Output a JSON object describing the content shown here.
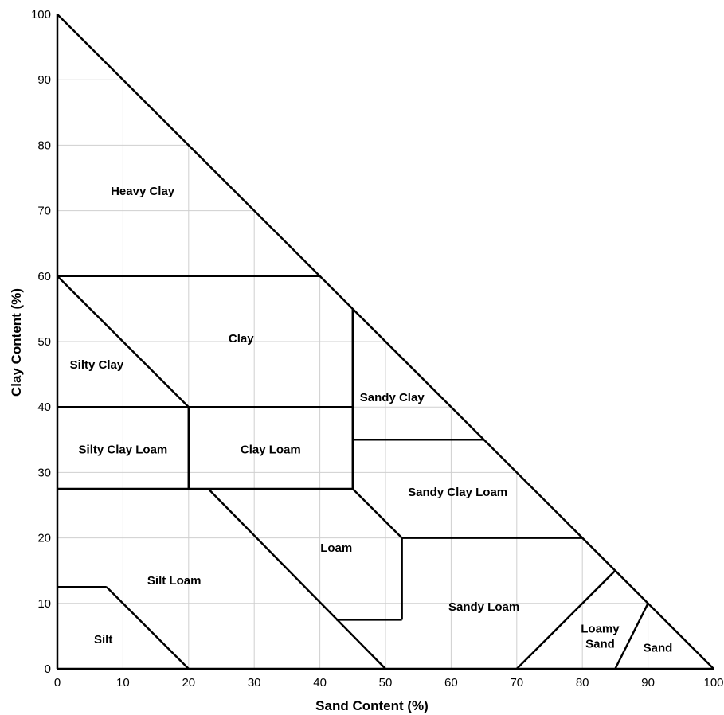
{
  "chart_data": {
    "type": "ternary-texture-diagram",
    "xlabel": "Sand Content (%)",
    "ylabel": "Clay Content (%)",
    "xlim": [
      0,
      100
    ],
    "ylim": [
      0,
      100
    ],
    "grid": true,
    "x_ticks": [
      "0",
      "10",
      "20",
      "30",
      "40",
      "50",
      "60",
      "70",
      "80",
      "90",
      "100"
    ],
    "y_ticks": [
      "0",
      "10",
      "20",
      "30",
      "40",
      "50",
      "60",
      "70",
      "80",
      "90",
      "100"
    ],
    "boundaries": [
      [
        [
          0,
          60
        ],
        [
          40,
          60
        ]
      ],
      [
        [
          0,
          60
        ],
        [
          20,
          40
        ]
      ],
      [
        [
          0,
          40
        ],
        [
          45,
          40
        ]
      ],
      [
        [
          20,
          40
        ],
        [
          20,
          27.5
        ]
      ],
      [
        [
          45,
          55
        ],
        [
          45,
          27.5
        ]
      ],
      [
        [
          45,
          35
        ],
        [
          65,
          35
        ]
      ],
      [
        [
          0,
          27.5
        ],
        [
          45,
          27.5
        ]
      ],
      [
        [
          45,
          27.5
        ],
        [
          52.5,
          20
        ]
      ],
      [
        [
          52.5,
          20
        ],
        [
          80,
          20
        ]
      ],
      [
        [
          52.5,
          20
        ],
        [
          52.5,
          7.5
        ]
      ],
      [
        [
          42.5,
          7.5
        ],
        [
          52.5,
          7.5
        ]
      ],
      [
        [
          23,
          27.5
        ],
        [
          50,
          0
        ]
      ],
      [
        [
          0,
          12.5
        ],
        [
          7.5,
          12.5
        ]
      ],
      [
        [
          7.5,
          12.5
        ],
        [
          20,
          0
        ]
      ],
      [
        [
          70,
          0
        ],
        [
          85,
          15
        ]
      ],
      [
        [
          85,
          0
        ],
        [
          90,
          10
        ]
      ]
    ],
    "regions": [
      {
        "name": "Heavy Clay",
        "x": 13,
        "y": 73,
        "lines": [
          "Heavy Clay"
        ]
      },
      {
        "name": "Clay",
        "x": 28,
        "y": 50.5,
        "lines": [
          "Clay"
        ]
      },
      {
        "name": "Silty Clay",
        "x": 6,
        "y": 46.5,
        "lines": [
          "Silty Clay"
        ]
      },
      {
        "name": "Sandy Clay",
        "x": 51,
        "y": 41.5,
        "lines": [
          "Sandy Clay"
        ]
      },
      {
        "name": "Silty Clay Loam",
        "x": 10,
        "y": 33.5,
        "lines": [
          "Silty Clay Loam"
        ]
      },
      {
        "name": "Clay Loam",
        "x": 32.5,
        "y": 33.5,
        "lines": [
          "Clay Loam"
        ]
      },
      {
        "name": "Sandy Clay Loam",
        "x": 61,
        "y": 27,
        "lines": [
          "Sandy Clay Loam"
        ]
      },
      {
        "name": "Loam",
        "x": 42.5,
        "y": 18.5,
        "lines": [
          "Loam"
        ]
      },
      {
        "name": "Silt Loam",
        "x": 17.8,
        "y": 13.5,
        "lines": [
          "Silt Loam"
        ]
      },
      {
        "name": "Sandy Loam",
        "x": 65,
        "y": 9.5,
        "lines": [
          "Sandy Loam"
        ]
      },
      {
        "name": "Silt",
        "x": 7,
        "y": 4.5,
        "lines": [
          "Silt"
        ]
      },
      {
        "name": "Loamy Sand",
        "x": 82.7,
        "y": 5,
        "lines": [
          "Loamy",
          "Sand"
        ]
      },
      {
        "name": "Sand",
        "x": 91.5,
        "y": 3.2,
        "lines": [
          "Sand"
        ]
      }
    ]
  }
}
